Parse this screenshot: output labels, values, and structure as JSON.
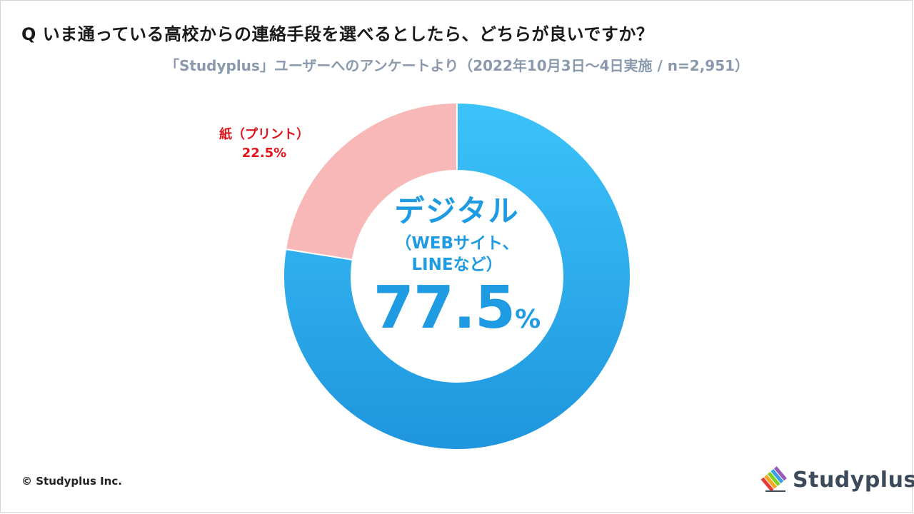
{
  "title": "Q いま通っている高校からの連絡手段を選べるとしたら、どちらが良いですか？",
  "subtitle": "「Studyplus」ユーザーへのアンケートより（2022年10月3日～4日実施 / n=2,951）",
  "chart_data": {
    "type": "pie",
    "donut": true,
    "slices": [
      {
        "label": "デジタル（WEBサイト、LINEなど）",
        "value": 77.5,
        "color": "#33b7f2"
      },
      {
        "label": "紙（プリント）",
        "value": 22.5,
        "color": "#f9b8b8"
      }
    ]
  },
  "labels": {
    "paper_name": "紙（プリント）",
    "paper_value": "22.5%",
    "digital_name": "デジタル",
    "digital_sub1": "（WEBサイト、",
    "digital_sub2": "LINEなど）",
    "digital_value": "77.5",
    "digital_unit": "%"
  },
  "footer": {
    "copyright": "© Studyplus Inc.",
    "logo_text": "Studyplus"
  },
  "colors": {
    "digital": "#33b7f2",
    "digital_dark": "#1e9be2",
    "paper": "#f9b8b8",
    "paper_label": "#e0141c"
  }
}
